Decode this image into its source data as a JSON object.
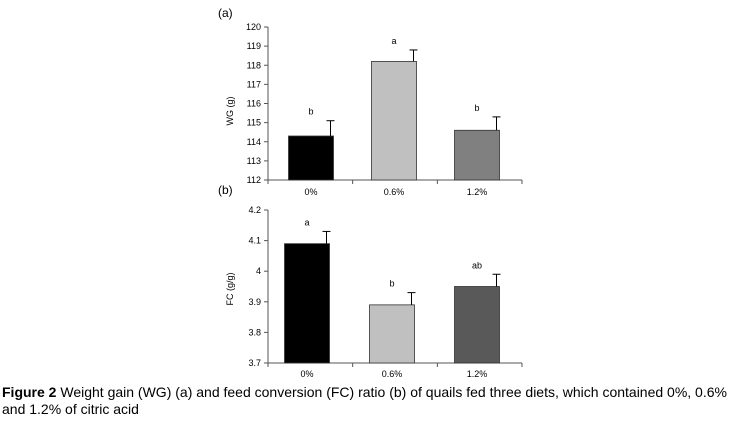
{
  "chart_data": [
    {
      "type": "bar",
      "panel_label": "(a)",
      "title": "",
      "xlabel": "",
      "ylabel": "WG (g)",
      "ylim": [
        112,
        120
      ],
      "yticks": [
        112,
        113,
        114,
        115,
        116,
        117,
        118,
        119,
        120
      ],
      "categories": [
        "0%",
        "0.6%",
        "1.2%"
      ],
      "values": [
        114.3,
        118.2,
        114.6
      ],
      "errors": [
        0.8,
        0.6,
        0.7
      ],
      "significance": [
        "b",
        "a",
        "b"
      ],
      "colors": [
        "#000000",
        "#c0c0c0",
        "#808080"
      ],
      "grid": false
    },
    {
      "type": "bar",
      "panel_label": "(b)",
      "title": "",
      "xlabel": "",
      "ylabel": "FC (g/g)",
      "ylim": [
        3.7,
        4.2
      ],
      "yticks": [
        "3.7",
        "3.8",
        "3.9",
        "4",
        "4.1",
        "4.2"
      ],
      "categories": [
        "0%",
        "0.6%",
        "1.2%"
      ],
      "values": [
        4.09,
        3.89,
        3.95
      ],
      "errors": [
        0.04,
        0.04,
        0.04
      ],
      "significance": [
        "a",
        "b",
        "ab"
      ],
      "colors": [
        "#000000",
        "#c0c0c0",
        "#595959"
      ],
      "grid": false
    }
  ],
  "caption": {
    "label": "Figure 2",
    "text": " Weight gain (WG) (a) and feed conversion (FC) ratio (b) of quails fed three diets, which contained 0%, 0.6% and 1.2% of citric acid"
  }
}
